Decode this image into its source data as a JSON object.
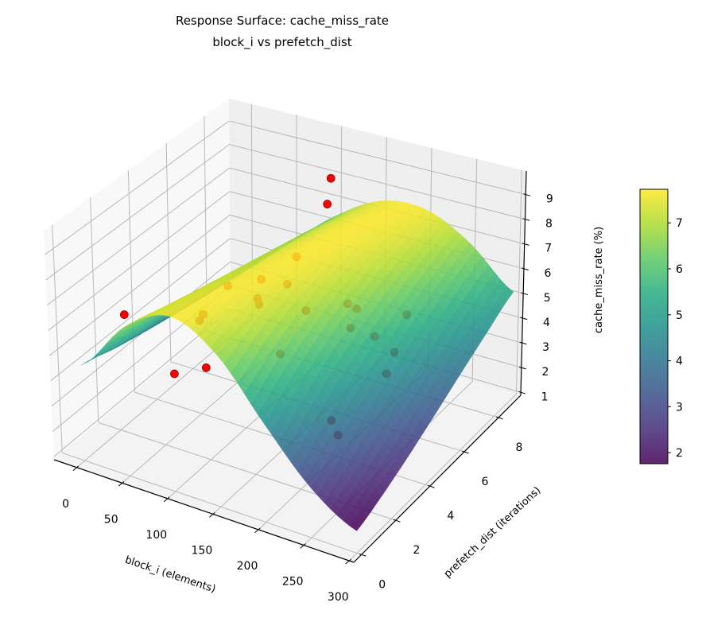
{
  "chart_data": {
    "type": "surface3d",
    "title": [
      "Response Surface: cache_miss_rate",
      "block_i vs prefetch_dist"
    ],
    "xlabel": "block_i (elements)",
    "ylabel": "prefetch_dist (iterations)",
    "zlabel": "cache_miss_rate (%)",
    "x_ticks": [
      "0",
      "50",
      "100",
      "150",
      "200",
      "250",
      "300"
    ],
    "y_ticks": [
      "0",
      "2",
      "4",
      "6",
      "8"
    ],
    "z_ticks": [
      "1",
      "2",
      "3",
      "4",
      "5",
      "6",
      "7",
      "8",
      "9"
    ],
    "xlim": [
      -25,
      305
    ],
    "ylim": [
      -0.45,
      9.3
    ],
    "zlim": [
      0.88,
      9.95
    ],
    "grid": true,
    "colormap": "viridis",
    "color_range": [
      1.76,
      7.73
    ],
    "colorbar": {
      "label": "cache_miss_rate (%)",
      "ticks": [
        "2",
        "3",
        "4",
        "5",
        "6",
        "7"
      ],
      "placement": "right"
    },
    "surface": {
      "x": [
        0,
        50,
        100,
        150,
        200,
        250,
        300
      ],
      "y": [
        0,
        1.5,
        3,
        4.5,
        6,
        7.5,
        9
      ],
      "z": [
        [
          4.66,
          6.75,
          7.7,
          6.75,
          4.66,
          2.78,
          1.72
        ],
        [
          4.35,
          6.38,
          7.64,
          7.23,
          5.47,
          3.49,
          2.12
        ],
        [
          4.09,
          6.03,
          7.46,
          7.53,
          6.17,
          4.24,
          2.64
        ],
        [
          3.86,
          5.69,
          7.23,
          7.67,
          6.73,
          4.97,
          3.25
        ],
        [
          3.65,
          5.37,
          6.97,
          7.7,
          7.16,
          5.65,
          3.91
        ],
        [
          3.48,
          5.08,
          6.68,
          7.63,
          7.45,
          6.24,
          4.57
        ],
        [
          3.32,
          4.81,
          6.39,
          7.49,
          7.62,
          6.72,
          5.21
        ]
      ]
    },
    "scatter": {
      "color": "#ff0000",
      "points": [
        [
          115,
          8,
          8.7
        ],
        [
          111,
          8,
          7.6
        ],
        [
          97,
          7,
          5.9
        ],
        [
          78,
          6,
          5.4
        ],
        [
          107,
          6,
          5.5
        ],
        [
          94,
          5,
          5.4
        ],
        [
          116,
          4,
          6.0
        ],
        [
          168,
          4,
          6.3
        ],
        [
          174,
          6,
          5.4
        ],
        [
          184,
          6,
          5.3
        ],
        [
          220,
          7,
          4.8
        ],
        [
          197,
          5,
          5.3
        ],
        [
          204,
          6,
          4.4
        ],
        [
          226,
          6,
          4.0
        ],
        [
          159,
          3,
          5.1
        ],
        [
          237,
          5,
          3.9
        ],
        [
          215,
          3,
          3.1
        ],
        [
          222,
          3,
          2.6
        ],
        [
          8,
          2,
          5.6
        ],
        [
          20,
          7,
          3.9
        ],
        [
          33,
          5,
          4.1
        ],
        [
          41,
          3,
          3.0
        ],
        [
          56,
          4,
          2.8
        ],
        [
          29,
          5,
          3.8
        ]
      ]
    }
  }
}
